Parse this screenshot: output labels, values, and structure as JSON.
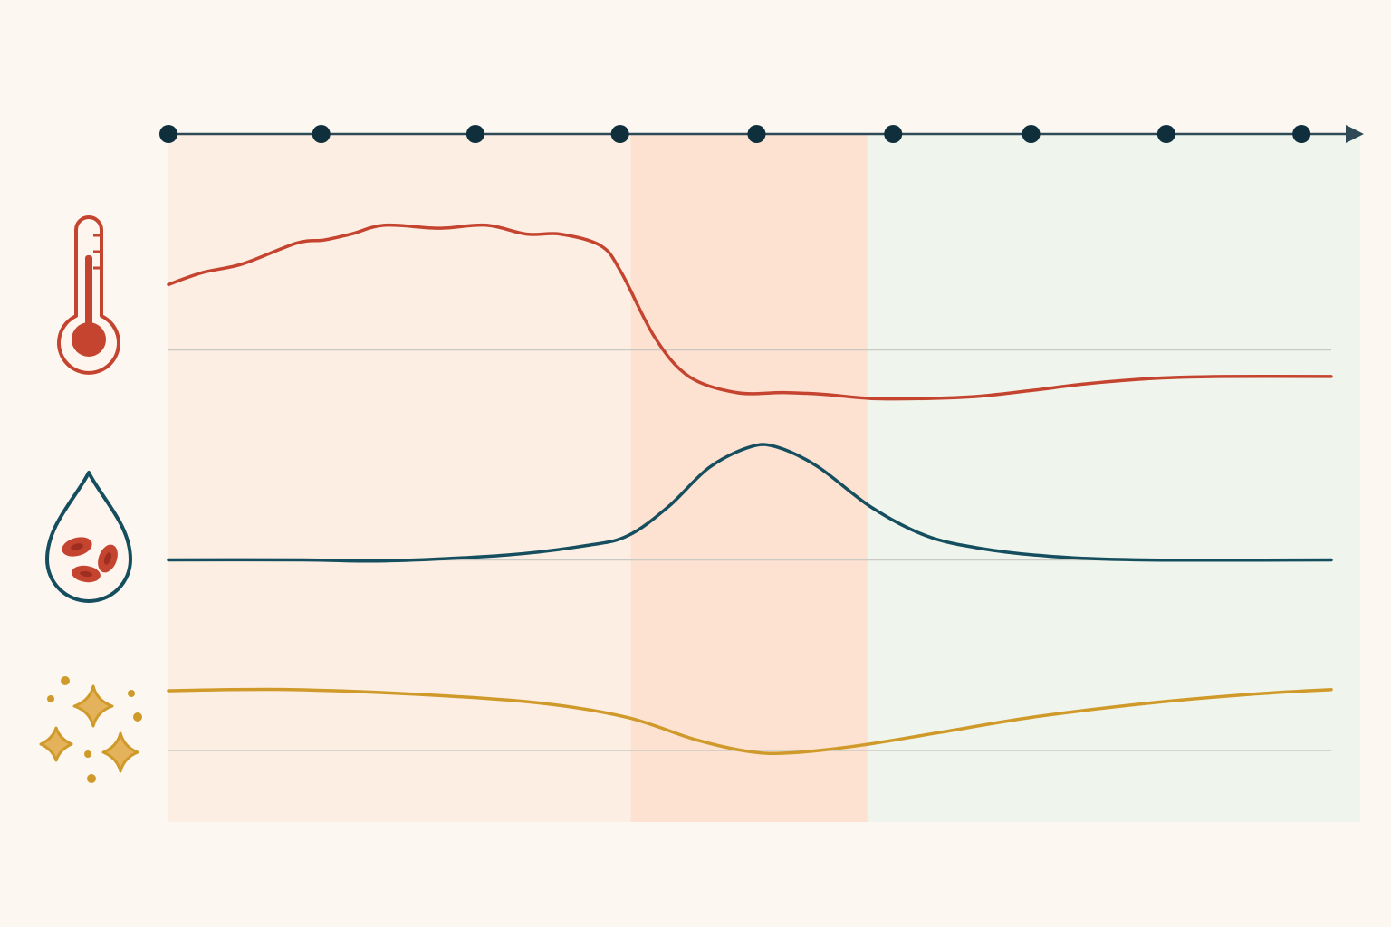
{
  "colors": {
    "background": "#fcf8f1",
    "phase_1": "#fdeee3",
    "phase_2": "#fde1d1",
    "phase_3": "#eff5ec",
    "axis": "#2d4a56",
    "marker": "#0e2f3b",
    "baseline": "#c9cac3",
    "temperature": "#c4442f",
    "blood": "#154e5e",
    "particles": "#cf9a2a"
  },
  "icons": [
    "thermometer-icon",
    "blood-drop-icon",
    "sparkle-particles-icon"
  ],
  "chart_data": {
    "type": "line",
    "x": {
      "range": [
        0,
        8.6
      ],
      "markers": [
        0,
        1.13,
        2.27,
        3.34,
        4.35,
        5.36,
        6.38,
        7.38,
        8.38
      ],
      "arrow": true
    },
    "phases": [
      {
        "from": 0,
        "to": 3.42
      },
      {
        "from": 3.42,
        "to": 5.17
      },
      {
        "from": 5.17,
        "to": 9.0
      }
    ],
    "grid": false,
    "legend": "none",
    "tick_labels": false,
    "series": [
      {
        "icon": "thermometer-icon",
        "color": "#c4442f",
        "baseline": 0,
        "y_range": [
          -1,
          2.6
        ],
        "points": [
          [
            0,
            1.1
          ],
          [
            0.25,
            1.3
          ],
          [
            0.55,
            1.45
          ],
          [
            0.95,
            1.8
          ],
          [
            1.15,
            1.85
          ],
          [
            1.35,
            1.95
          ],
          [
            1.6,
            2.1
          ],
          [
            2.0,
            2.05
          ],
          [
            2.35,
            2.1
          ],
          [
            2.65,
            1.95
          ],
          [
            2.9,
            1.95
          ],
          [
            3.2,
            1.75
          ],
          [
            3.35,
            1.3
          ],
          [
            3.6,
            0.2
          ],
          [
            3.85,
            -0.45
          ],
          [
            4.2,
            -0.72
          ],
          [
            4.55,
            -0.72
          ],
          [
            4.85,
            -0.75
          ],
          [
            5.2,
            -0.82
          ],
          [
            5.6,
            -0.82
          ],
          [
            6.0,
            -0.78
          ],
          [
            6.4,
            -0.68
          ],
          [
            6.8,
            -0.57
          ],
          [
            7.3,
            -0.48
          ],
          [
            7.8,
            -0.45
          ],
          [
            8.8,
            -0.45
          ]
        ]
      },
      {
        "icon": "blood-drop-icon",
        "color": "#154e5e",
        "baseline": 0,
        "y_range": [
          -0.2,
          1.4
        ],
        "points": [
          [
            0,
            0
          ],
          [
            1.0,
            0
          ],
          [
            1.6,
            -0.01
          ],
          [
            2.5,
            0.05
          ],
          [
            3.1,
            0.15
          ],
          [
            3.4,
            0.25
          ],
          [
            3.7,
            0.55
          ],
          [
            4.0,
            0.95
          ],
          [
            4.3,
            1.16
          ],
          [
            4.5,
            1.16
          ],
          [
            4.8,
            0.96
          ],
          [
            5.2,
            0.54
          ],
          [
            5.6,
            0.25
          ],
          [
            6.0,
            0.12
          ],
          [
            6.5,
            0.04
          ],
          [
            7.2,
            0.0
          ],
          [
            8.8,
            0.0
          ]
        ]
      },
      {
        "icon": "sparkle-particles-icon",
        "color": "#cf9a2a",
        "baseline": 0,
        "y_range": [
          -0.5,
          1.5
        ],
        "points": [
          [
            0,
            1.0
          ],
          [
            0.9,
            1.02
          ],
          [
            2.0,
            0.92
          ],
          [
            2.8,
            0.78
          ],
          [
            3.4,
            0.55
          ],
          [
            3.9,
            0.18
          ],
          [
            4.3,
            -0.02
          ],
          [
            4.6,
            -0.04
          ],
          [
            5.1,
            0.08
          ],
          [
            5.7,
            0.3
          ],
          [
            6.4,
            0.56
          ],
          [
            7.2,
            0.78
          ],
          [
            8.0,
            0.94
          ],
          [
            8.8,
            1.02
          ]
        ]
      }
    ]
  }
}
